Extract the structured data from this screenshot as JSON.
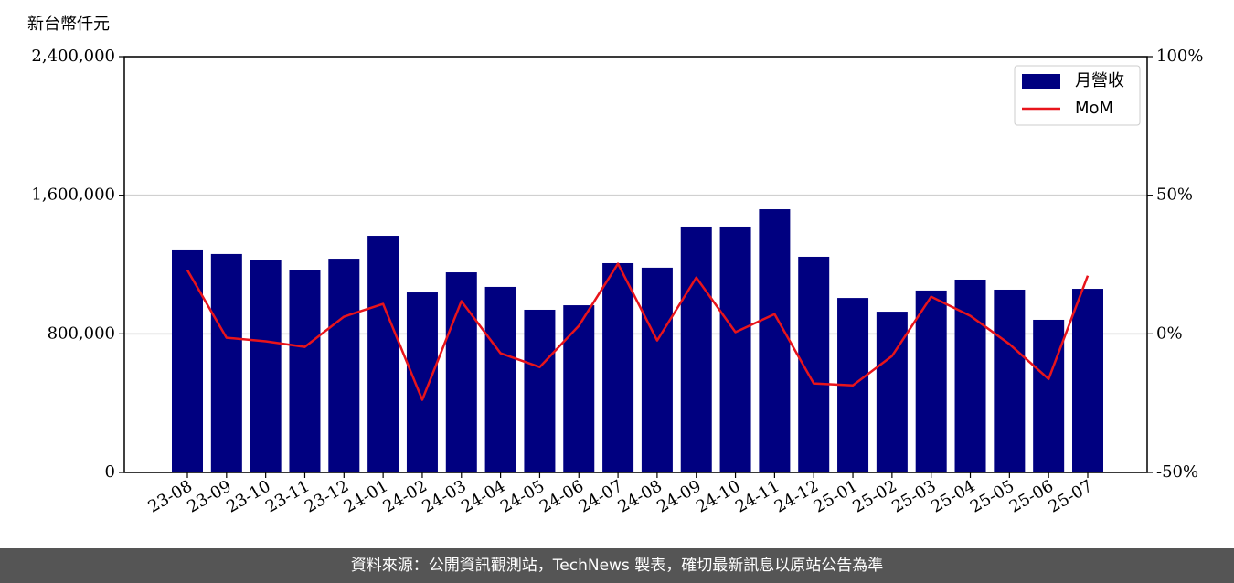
{
  "chart_data": {
    "type": "bar",
    "y_label": "新台幣仟元",
    "categories": [
      "23-08",
      "23-09",
      "23-10",
      "23-11",
      "23-12",
      "24-01",
      "24-02",
      "24-03",
      "24-04",
      "24-05",
      "24-06",
      "24-07",
      "24-08",
      "24-09",
      "24-10",
      "24-11",
      "24-12",
      "25-01",
      "25-02",
      "25-03",
      "25-04",
      "25-05",
      "25-06",
      "25-07"
    ],
    "series": [
      {
        "name": "月營收",
        "type": "bar",
        "color": "#000080",
        "values": [
          1282000,
          1261000,
          1229000,
          1166000,
          1234000,
          1366000,
          1039000,
          1155000,
          1071000,
          939000,
          965000,
          1208000,
          1182000,
          1419000,
          1419000,
          1519000,
          1245000,
          1007000,
          928000,
          1050000,
          1113000,
          1055000,
          881000,
          1060000
        ]
      },
      {
        "name": "MoM",
        "type": "line",
        "axis": "y2",
        "color": "#e8141b",
        "values": [
          23.0,
          -1.4,
          -2.7,
          -4.7,
          6.2,
          10.8,
          -23.8,
          11.8,
          -7.0,
          -12.0,
          2.9,
          25.3,
          -2.4,
          20.3,
          0.6,
          7.1,
          -17.9,
          -18.6,
          -8.0,
          13.4,
          6.5,
          -3.7,
          -16.3,
          21.0
        ]
      }
    ],
    "ylim": [
      0,
      2400000
    ],
    "yticks": [
      0,
      {
        "value": 800000,
        "label": "800,000"
      },
      {
        "value": 1600000,
        "label": "1,600,000"
      },
      {
        "value": 2400000,
        "label": "2,400,000"
      }
    ],
    "y2lim": [
      -50,
      100
    ],
    "y2ticks": [
      {
        "value": -50,
        "label": "-50%"
      },
      {
        "value": 0,
        "label": "0%"
      },
      {
        "value": 50,
        "label": "50%"
      },
      {
        "value": 100,
        "label": "100%"
      }
    ],
    "grid": true,
    "legend": "upper right"
  },
  "footer": "資料來源：公開資訊觀測站，TechNews 製表，確切最新訊息以原站公告為準"
}
